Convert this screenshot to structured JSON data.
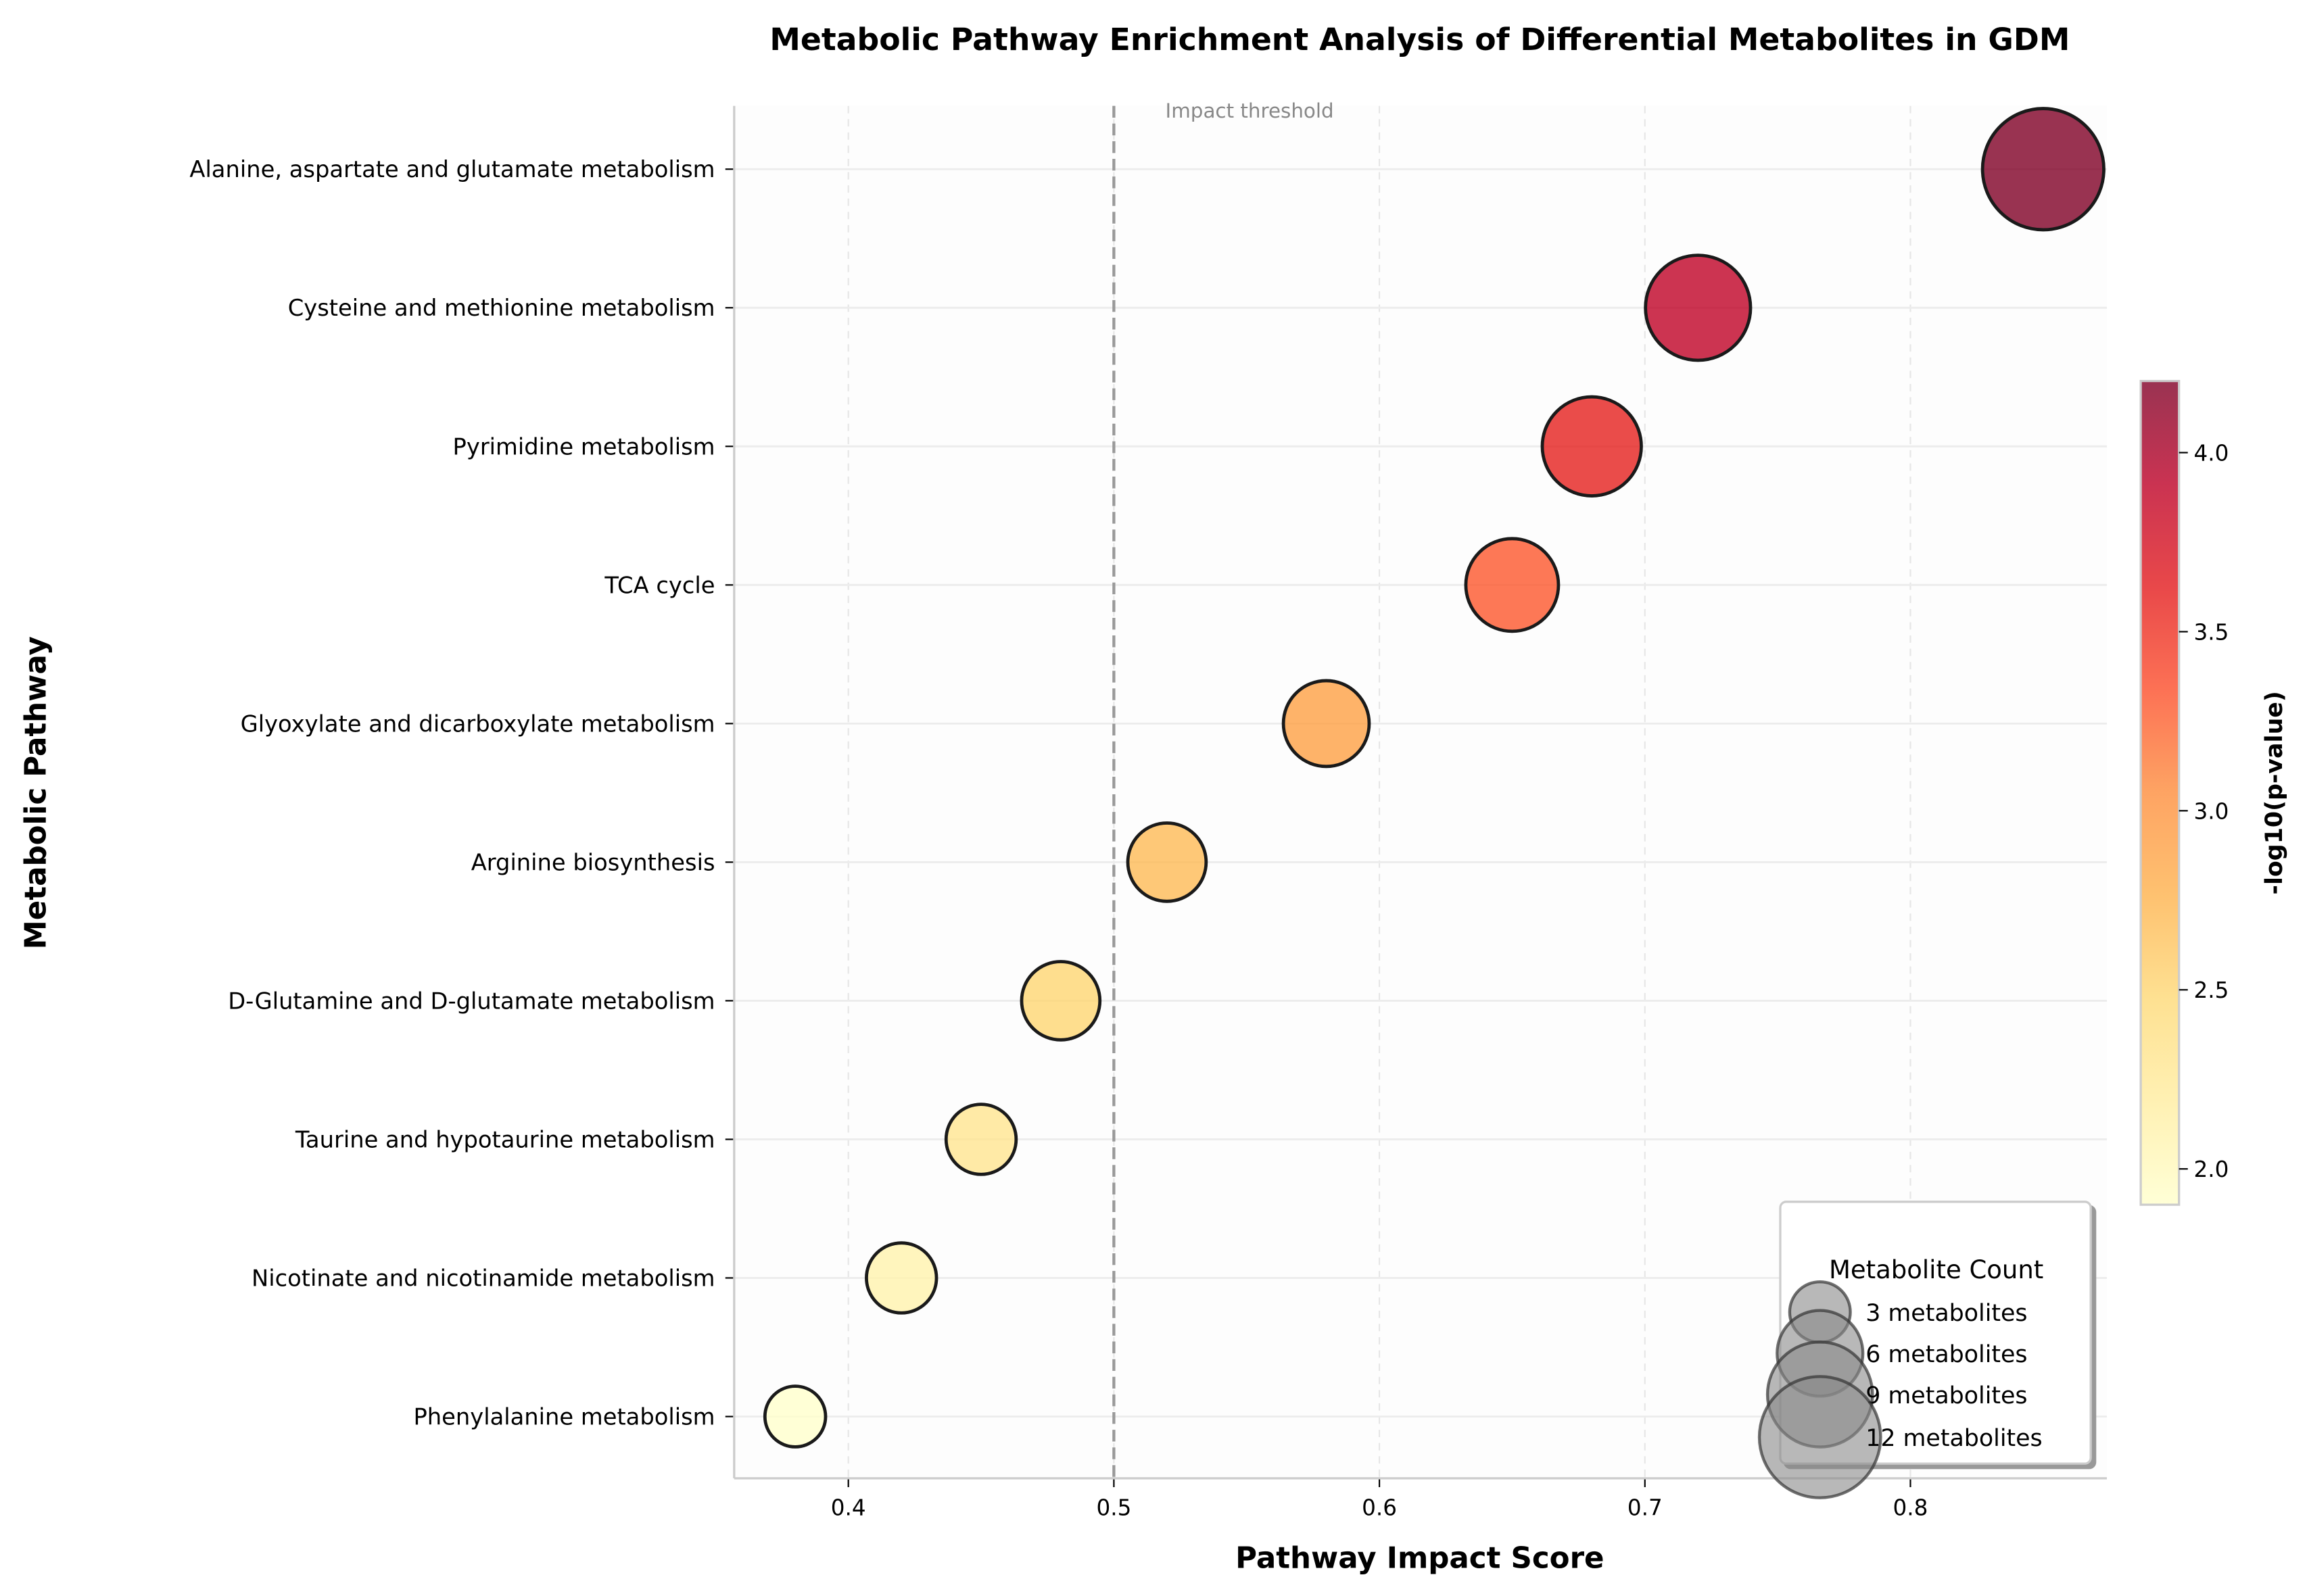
{
  "chart_data": {
    "type": "scatter",
    "title": "Metabolic Pathway Enrichment Analysis of Differential Metabolites in GDM",
    "xlabel": "Pathway Impact Score",
    "ylabel": "Metabolic Pathway",
    "xlim": [
      0.357,
      0.874
    ],
    "xticks": [
      "0.4",
      "0.5",
      "0.6",
      "0.7",
      "0.8"
    ],
    "xtick_values": [
      0.4,
      0.5,
      0.6,
      0.7,
      0.8
    ],
    "threshold": {
      "value": 0.5,
      "label": "Impact threshold"
    },
    "points": [
      {
        "pathway": "Alanine, aspartate and glutamate metabolism",
        "impact": 0.85,
        "neg_log10_p": 4.2,
        "count": 12
      },
      {
        "pathway": "Cysteine and methionine metabolism",
        "impact": 0.72,
        "neg_log10_p": 3.9,
        "count": 9
      },
      {
        "pathway": "Pyrimidine metabolism",
        "impact": 0.68,
        "neg_log10_p": 3.6,
        "count": 8
      },
      {
        "pathway": "TCA cycle",
        "impact": 0.65,
        "neg_log10_p": 3.3,
        "count": 7
      },
      {
        "pathway": "Glyoxylate and dicarboxylate metabolism",
        "impact": 0.58,
        "neg_log10_p": 2.9,
        "count": 6
      },
      {
        "pathway": "Arginine biosynthesis",
        "impact": 0.52,
        "neg_log10_p": 2.7,
        "count": 5
      },
      {
        "pathway": "D-Glutamine and D-glutamate metabolism",
        "impact": 0.48,
        "neg_log10_p": 2.5,
        "count": 5
      },
      {
        "pathway": "Taurine and hypotaurine metabolism",
        "impact": 0.45,
        "neg_log10_p": 2.3,
        "count": 4
      },
      {
        "pathway": "Nicotinate and nicotinamide metabolism",
        "impact": 0.42,
        "neg_log10_p": 2.1,
        "count": 4
      },
      {
        "pathway": "Phenylalanine metabolism",
        "impact": 0.38,
        "neg_log10_p": 1.9,
        "count": 3
      }
    ],
    "colorbar": {
      "label": "-log10(p-value)",
      "range": [
        1.9,
        4.2
      ],
      "ticks": [
        "2.0",
        "2.5",
        "3.0",
        "3.5",
        "4.0"
      ],
      "tick_values": [
        2.0,
        2.5,
        3.0,
        3.5,
        4.0
      ],
      "colormap": [
        "#ffffcc",
        "#ffeda0",
        "#fed976",
        "#feb24c",
        "#fd8d3c",
        "#fc4e2a",
        "#e31a1c",
        "#bd0026",
        "#800026"
      ]
    },
    "legend": {
      "title": "Metabolite Count",
      "placement": "bottom-right",
      "entries": [
        {
          "label": "3 metabolites",
          "count": 3
        },
        {
          "label": "6 metabolites",
          "count": 6
        },
        {
          "label": "9 metabolites",
          "count": 9
        },
        {
          "label": "12 metabolites",
          "count": 12
        }
      ]
    },
    "grid": true
  }
}
